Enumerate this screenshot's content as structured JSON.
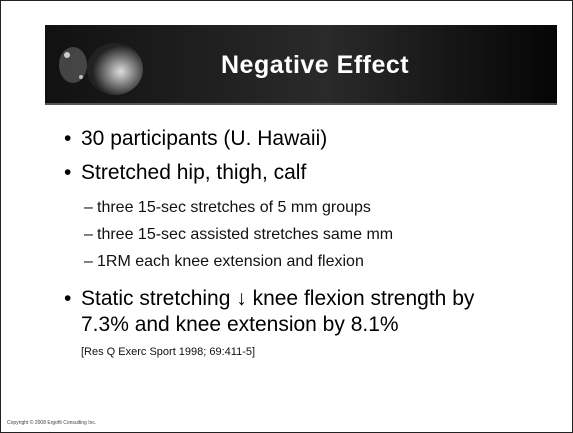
{
  "slide": {
    "title": "Negative Effect",
    "bullets": [
      {
        "text": "30 participants  (U. Hawaii)"
      },
      {
        "text": "Stretched hip, thigh, calf",
        "sub": [
          "three 15-sec stretches of 5 mm groups",
          "three 15-sec assisted stretches same mm",
          "1RM each knee extension and flexion"
        ]
      },
      {
        "lines": [
          "Static stretching ↓ knee flexion strength by",
          "7.3% and knee extension by 8.1%"
        ]
      }
    ],
    "citation": "[Res Q Exerc Sport 1998; 69:411-5]",
    "copyright": "Copyright © 2008 Ergofit Consulting Inc."
  }
}
